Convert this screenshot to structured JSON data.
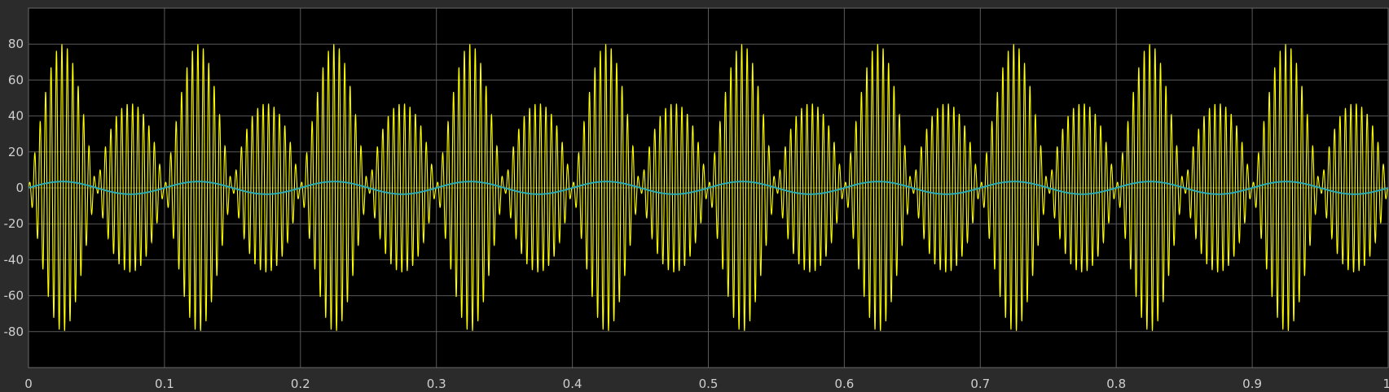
{
  "chart_data": {
    "type": "line",
    "title": "",
    "xlabel": "",
    "ylabel": "",
    "xlim": [
      0,
      1
    ],
    "ylim": [
      -100,
      100
    ],
    "grid": true,
    "x_ticks": [
      "0",
      "0.1",
      "0.2",
      "0.3",
      "0.4",
      "0.5",
      "0.6",
      "0.7",
      "0.8",
      "0.9",
      "1"
    ],
    "x_tick_values": [
      0,
      0.1,
      0.2,
      0.3,
      0.4,
      0.5,
      0.6,
      0.7,
      0.8,
      0.9,
      1
    ],
    "y_ticks": [
      "80",
      "60",
      "40",
      "20",
      "0",
      "-20",
      "-40",
      "-60",
      "-80"
    ],
    "y_tick_values": [
      80,
      60,
      40,
      20,
      0,
      -20,
      -40,
      -60,
      -80
    ],
    "series": [
      {
        "color": "#ffff00",
        "description_values": "amplitude-modulated oscillation; envelope peaks alternate ~80 and ~47, lobe peaks at t=0.025,0.075,...,0.975",
        "carrier_frequency_hz": 250,
        "envelope": {
          "base": 63.5,
          "depth": 16.5,
          "lobes_per_unit": 20
        },
        "peak_times": [
          0.025,
          0.075,
          0.125,
          0.175,
          0.225,
          0.275,
          0.325,
          0.375,
          0.425,
          0.475,
          0.525,
          0.575,
          0.625,
          0.675,
          0.725,
          0.775,
          0.825,
          0.875,
          0.925,
          0.975
        ],
        "peak_values": [
          80,
          47,
          80,
          47,
          80,
          47,
          80,
          47,
          80,
          47,
          80,
          47,
          80,
          47,
          80,
          47,
          80,
          47,
          80,
          47
        ]
      },
      {
        "color": "#2aa9b8",
        "frequency_hz": 10,
        "amplitude": 3.5,
        "x": [
          0,
          0.025,
          0.05,
          0.075,
          0.1,
          0.125,
          0.15,
          0.175,
          0.2,
          0.225,
          0.25,
          0.275,
          0.3,
          0.325,
          0.35,
          0.375,
          0.4,
          0.425,
          0.45,
          0.475,
          0.5,
          0.525,
          0.55,
          0.575,
          0.6,
          0.625,
          0.65,
          0.675,
          0.7,
          0.725,
          0.75,
          0.775,
          0.8,
          0.825,
          0.85,
          0.875,
          0.9,
          0.925,
          0.95,
          0.975,
          1
        ],
        "y": [
          0,
          3.5,
          0,
          -3.5,
          0,
          3.5,
          0,
          -3.5,
          0,
          3.5,
          0,
          -3.5,
          0,
          3.5,
          0,
          -3.5,
          0,
          3.5,
          0,
          -3.5,
          0,
          3.5,
          0,
          -3.5,
          0,
          3.5,
          0,
          -3.5,
          0,
          3.5,
          0,
          -3.5,
          0,
          3.5,
          0,
          -3.5,
          0,
          3.5,
          0,
          -3.5,
          0
        ]
      }
    ]
  },
  "colors": {
    "background": "#2b2b2b",
    "plot_background": "#000000",
    "grid": "#5a5a5a",
    "tick_text": "#cfcfcf"
  }
}
